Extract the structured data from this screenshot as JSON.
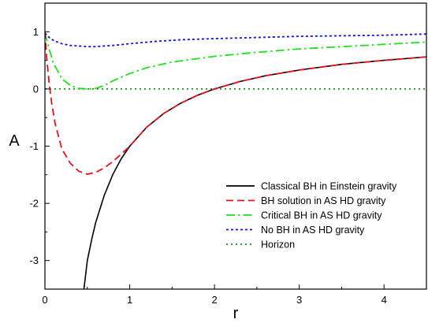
{
  "chart_data": {
    "type": "line",
    "title": "",
    "xlabel": "r",
    "ylabel": "A",
    "xlim": [
      0,
      4.5
    ],
    "ylim": [
      -3.5,
      1.5
    ],
    "x_ticks": [
      0,
      1,
      2,
      3,
      4
    ],
    "x_tick_labels": [
      "0",
      "1",
      "2",
      "3",
      "4"
    ],
    "y_ticks": [
      1,
      0,
      -1,
      -2,
      -3
    ],
    "y_tick_labels": [
      "1",
      "0",
      "-1",
      "-2",
      "-3"
    ],
    "grid": false,
    "legend_position": "bottom-right",
    "series": [
      {
        "name": "Classical BH in Einstein gravity",
        "color": "#000000",
        "dash": "solid",
        "points": [
          [
            0.46,
            -3.5
          ],
          [
            0.5,
            -3.0
          ],
          [
            0.55,
            -2.64
          ],
          [
            0.6,
            -2.33
          ],
          [
            0.7,
            -1.86
          ],
          [
            0.8,
            -1.5
          ],
          [
            0.9,
            -1.22
          ],
          [
            1.0,
            -1.0
          ],
          [
            1.2,
            -0.67
          ],
          [
            1.4,
            -0.43
          ],
          [
            1.6,
            -0.25
          ],
          [
            1.8,
            -0.11
          ],
          [
            2.0,
            0.0
          ],
          [
            2.3,
            0.13
          ],
          [
            2.6,
            0.23
          ],
          [
            3.0,
            0.33
          ],
          [
            3.5,
            0.43
          ],
          [
            4.0,
            0.5
          ],
          [
            4.5,
            0.56
          ]
        ]
      },
      {
        "name": "BH solution in AS HD gravity",
        "color": "#e8101a",
        "dash": "dashed",
        "points": [
          [
            0.0,
            1.0
          ],
          [
            0.02,
            0.55
          ],
          [
            0.05,
            0.1
          ],
          [
            0.08,
            -0.25
          ],
          [
            0.12,
            -0.6
          ],
          [
            0.2,
            -1.05
          ],
          [
            0.3,
            -1.3
          ],
          [
            0.4,
            -1.44
          ],
          [
            0.5,
            -1.49
          ],
          [
            0.6,
            -1.46
          ],
          [
            0.7,
            -1.38
          ],
          [
            0.8,
            -1.27
          ],
          [
            0.9,
            -1.14
          ],
          [
            1.0,
            -1.0
          ],
          [
            1.2,
            -0.67
          ],
          [
            1.4,
            -0.43
          ],
          [
            1.6,
            -0.25
          ],
          [
            1.8,
            -0.11
          ],
          [
            2.0,
            0.0
          ],
          [
            2.3,
            0.13
          ],
          [
            2.6,
            0.23
          ],
          [
            3.0,
            0.33
          ],
          [
            3.5,
            0.43
          ],
          [
            4.0,
            0.5
          ],
          [
            4.5,
            0.56
          ]
        ]
      },
      {
        "name": "Critical BH in AS HD gravity",
        "color": "#22dd22",
        "dash": "dashdot",
        "points": [
          [
            0.0,
            0.98
          ],
          [
            0.05,
            0.7
          ],
          [
            0.1,
            0.45
          ],
          [
            0.2,
            0.18
          ],
          [
            0.3,
            0.06
          ],
          [
            0.4,
            0.01
          ],
          [
            0.5,
            0.0
          ],
          [
            0.6,
            0.01
          ],
          [
            0.7,
            0.06
          ],
          [
            0.8,
            0.14
          ],
          [
            1.0,
            0.27
          ],
          [
            1.2,
            0.37
          ],
          [
            1.5,
            0.47
          ],
          [
            2.0,
            0.57
          ],
          [
            2.5,
            0.64
          ],
          [
            3.0,
            0.7
          ],
          [
            3.5,
            0.74
          ],
          [
            4.0,
            0.78
          ],
          [
            4.5,
            0.82
          ]
        ]
      },
      {
        "name": "No BH in AS HD gravity",
        "color": "#1010ee",
        "dash": "dotted",
        "points": [
          [
            0.0,
            0.98
          ],
          [
            0.05,
            0.9
          ],
          [
            0.1,
            0.85
          ],
          [
            0.2,
            0.79
          ],
          [
            0.3,
            0.76
          ],
          [
            0.4,
            0.75
          ],
          [
            0.5,
            0.74
          ],
          [
            0.6,
            0.74
          ],
          [
            0.7,
            0.75
          ],
          [
            0.8,
            0.76
          ],
          [
            1.0,
            0.79
          ],
          [
            1.3,
            0.83
          ],
          [
            1.6,
            0.86
          ],
          [
            2.0,
            0.88
          ],
          [
            2.5,
            0.9
          ],
          [
            3.0,
            0.92
          ],
          [
            3.5,
            0.93
          ],
          [
            4.0,
            0.94
          ],
          [
            4.5,
            0.96
          ]
        ]
      },
      {
        "name": "Horizon",
        "color": "#1a8f1a",
        "dash": "dotted-fine",
        "points": [
          [
            0.0,
            0.0
          ],
          [
            4.5,
            0.0
          ]
        ]
      }
    ]
  }
}
